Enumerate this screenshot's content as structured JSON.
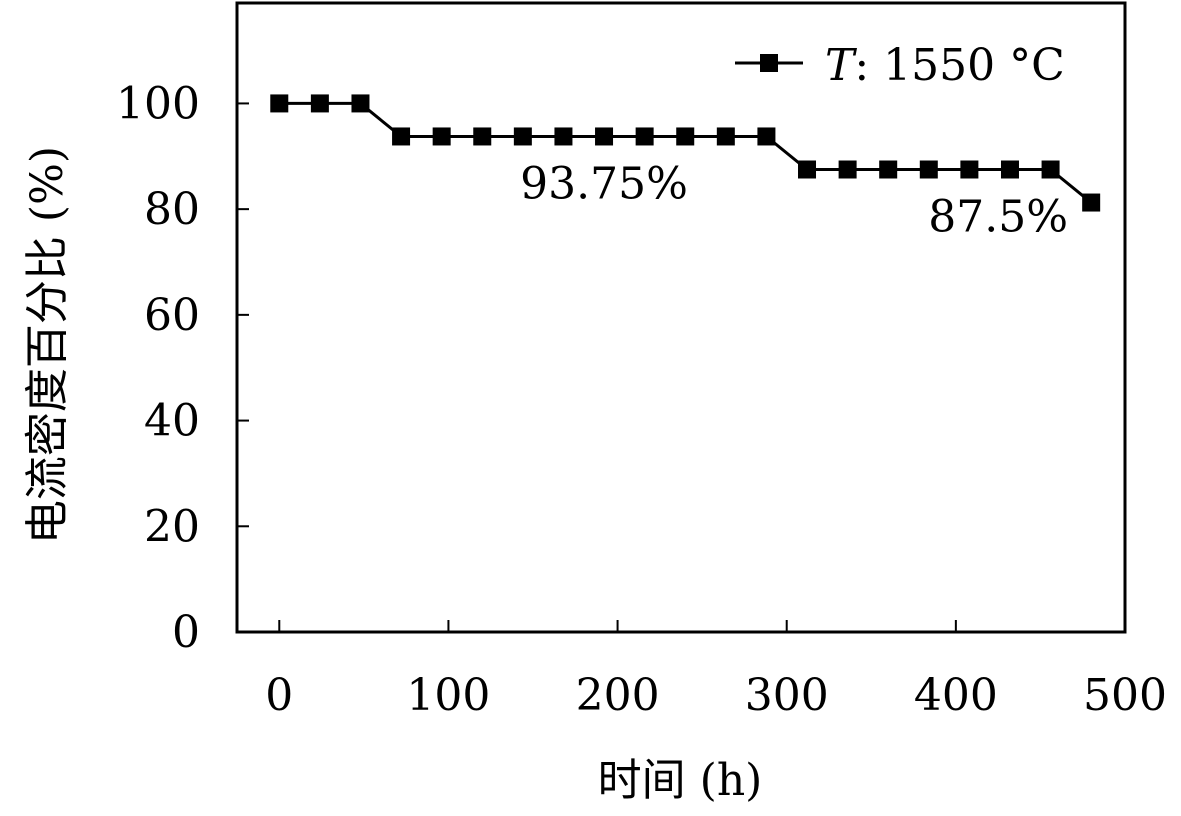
{
  "chart_data": {
    "type": "line",
    "xlabel": "时间 (h)",
    "ylabel": "电流密度百分比 (%)",
    "xlim": [
      -25,
      500
    ],
    "ylim": [
      0,
      119
    ],
    "x_ticks": [
      0,
      100,
      200,
      300,
      400,
      500
    ],
    "y_ticks": [
      0,
      20,
      40,
      60,
      80,
      100
    ],
    "grid": false,
    "legend_position": "top-right",
    "series": [
      {
        "name": "T: 1550 °C",
        "name_italic": "T",
        "name_rest": ": 1550 °C",
        "marker": "square",
        "color": "#000000",
        "x": [
          0,
          24,
          48,
          72,
          96,
          120,
          144,
          168,
          192,
          216,
          240,
          264,
          288,
          312,
          336,
          360,
          384,
          408,
          432,
          456,
          480
        ],
        "y": [
          100,
          100,
          100,
          93.75,
          93.75,
          93.75,
          93.75,
          93.75,
          93.75,
          93.75,
          93.75,
          93.75,
          93.75,
          87.5,
          87.5,
          87.5,
          87.5,
          87.5,
          87.5,
          87.5,
          81.25
        ]
      }
    ],
    "annotations": [
      {
        "text": "93.75%",
        "x": 192,
        "y": 93.75
      },
      {
        "text": "87.5%",
        "x": 425,
        "y": 87.5
      }
    ]
  }
}
